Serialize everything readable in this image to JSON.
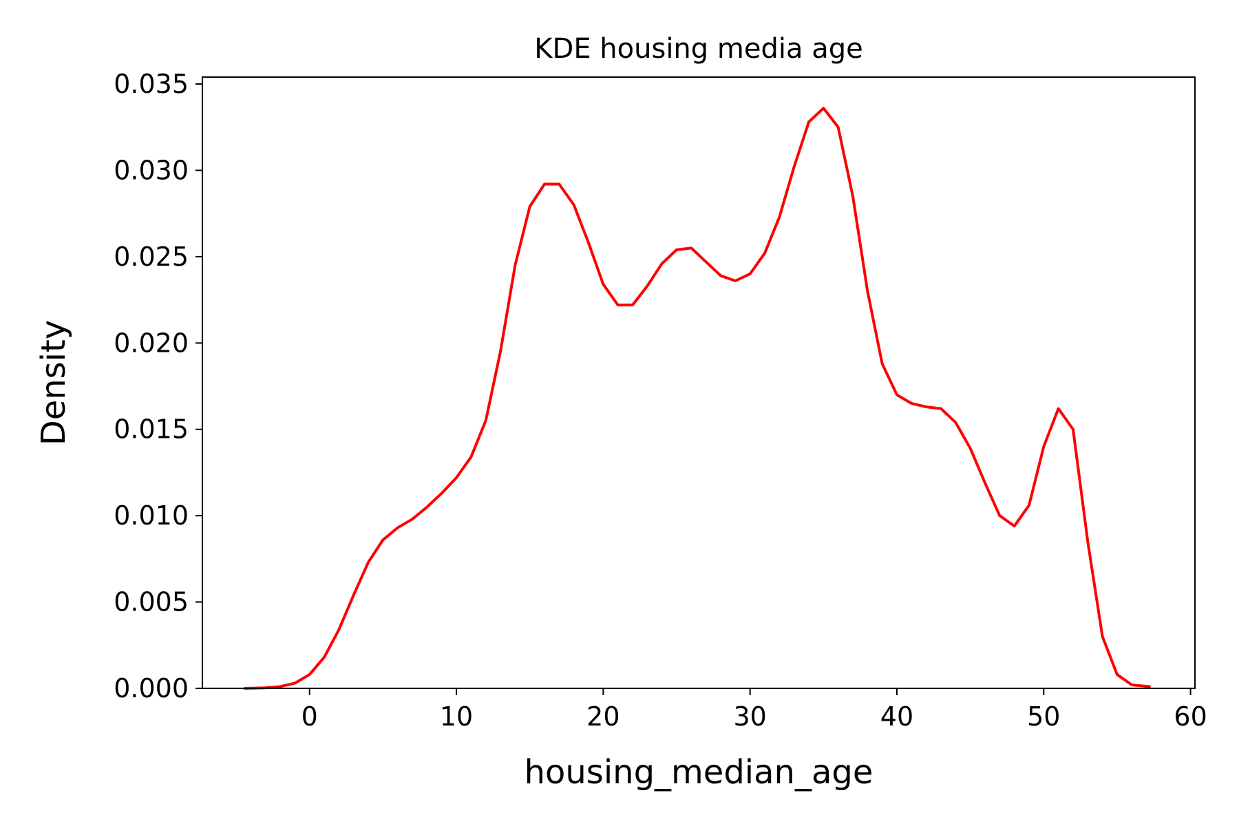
{
  "chart_data": {
    "type": "line",
    "title": "KDE housing media age",
    "xlabel": "housing_median_age",
    "ylabel": "Density",
    "xlim": [
      -7.3,
      60.3
    ],
    "ylim": [
      0,
      0.0354
    ],
    "x_ticks": [
      0,
      10,
      20,
      30,
      40,
      50,
      60
    ],
    "x_tick_labels": [
      "0",
      "10",
      "20",
      "30",
      "40",
      "50",
      "60"
    ],
    "y_ticks": [
      0.0,
      0.005,
      0.01,
      0.015,
      0.02,
      0.025,
      0.03,
      0.035
    ],
    "y_tick_labels": [
      "0.000",
      "0.005",
      "0.010",
      "0.015",
      "0.020",
      "0.025",
      "0.030",
      "0.035"
    ],
    "grid": false,
    "legend": "none",
    "series": [
      {
        "color": "#ff0000",
        "x": [
          -4.4,
          -3,
          -2,
          -1,
          0,
          1,
          2,
          3,
          4,
          5,
          6,
          7,
          8,
          9,
          10,
          11,
          12,
          13,
          14,
          15,
          16,
          17,
          18,
          19,
          20,
          21,
          22,
          23,
          24,
          25,
          26,
          27,
          28,
          29,
          30,
          31,
          32,
          33,
          34,
          35,
          36,
          37,
          38,
          39,
          40,
          41,
          42,
          43,
          44,
          45,
          46,
          47,
          48,
          49,
          50,
          51,
          52,
          53,
          54,
          55,
          56,
          57.2
        ],
        "y": [
          0.0,
          3e-05,
          0.0001,
          0.0003,
          0.0008,
          0.0018,
          0.0034,
          0.0054,
          0.0073,
          0.0086,
          0.0093,
          0.0098,
          0.0105,
          0.0113,
          0.0122,
          0.0134,
          0.0155,
          0.0195,
          0.0245,
          0.0279,
          0.0292,
          0.0292,
          0.028,
          0.0258,
          0.0234,
          0.0222,
          0.0222,
          0.0233,
          0.0246,
          0.0254,
          0.0255,
          0.0247,
          0.0239,
          0.0236,
          0.024,
          0.0252,
          0.0273,
          0.0302,
          0.0328,
          0.0336,
          0.0325,
          0.0285,
          0.023,
          0.0188,
          0.017,
          0.0165,
          0.0163,
          0.0162,
          0.0154,
          0.0139,
          0.0119,
          0.01,
          0.0094,
          0.0106,
          0.014,
          0.0162,
          0.015,
          0.0085,
          0.003,
          0.0008,
          0.0002,
          0.0001
        ]
      }
    ]
  }
}
